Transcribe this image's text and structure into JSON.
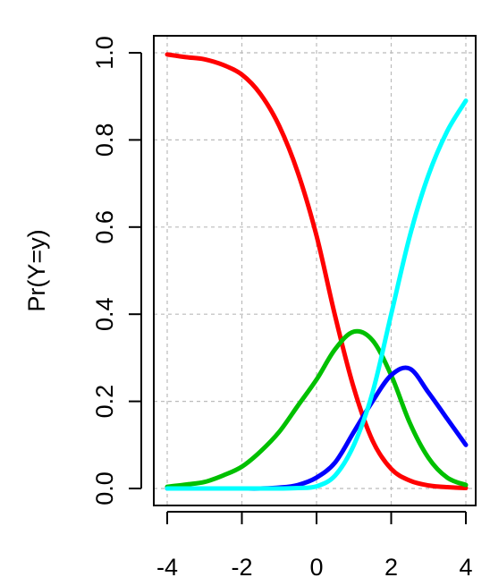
{
  "chart_data": {
    "type": "line",
    "title": "",
    "xlabel": "",
    "ylabel": "Pr(Y=y)",
    "xlim": [
      -4,
      4
    ],
    "ylim": [
      0,
      1
    ],
    "xticks": [
      -4,
      -2,
      0,
      2,
      4
    ],
    "xtick_labels": [
      "-4",
      "-2",
      "0",
      "2",
      "4"
    ],
    "yticks": [
      0,
      0.2,
      0.4,
      0.6,
      0.8,
      1
    ],
    "ytick_labels": [
      "0.0",
      "0.2",
      "0.4",
      "0.6",
      "0.8",
      "1.0"
    ],
    "grid": true,
    "legend": "none",
    "x": [
      -4,
      -3.5,
      -3,
      -2.5,
      -2,
      -1.5,
      -1,
      -0.5,
      0,
      0.5,
      1,
      1.5,
      2,
      2.5,
      3,
      3.5,
      4
    ],
    "series": [
      {
        "color": "#ff0000",
        "values": [
          0.996,
          0.99,
          0.985,
          0.972,
          0.95,
          0.905,
          0.832,
          0.725,
          0.58,
          0.395,
          0.23,
          0.11,
          0.045,
          0.018,
          0.007,
          0.003,
          0.001
        ]
      },
      {
        "color": "#00c000",
        "values": [
          0.004,
          0.009,
          0.015,
          0.03,
          0.05,
          0.085,
          0.13,
          0.19,
          0.25,
          0.32,
          0.36,
          0.34,
          0.26,
          0.15,
          0.07,
          0.025,
          0.008
        ]
      },
      {
        "color": "#0000ff",
        "values": [
          0.0,
          0.0,
          0.0,
          0.0,
          0.0,
          0.0,
          0.002,
          0.008,
          0.025,
          0.06,
          0.13,
          0.2,
          0.26,
          0.275,
          0.22,
          0.16,
          0.1
        ]
      },
      {
        "color": "#00ffff",
        "values": [
          0.0,
          0.0,
          0.0,
          0.0,
          0.0,
          0.0,
          0.0,
          0.001,
          0.005,
          0.03,
          0.1,
          0.22,
          0.4,
          0.58,
          0.72,
          0.82,
          0.89
        ]
      }
    ],
    "colors": {
      "grid": "#bbbbbb",
      "axis": "#000000"
    }
  }
}
